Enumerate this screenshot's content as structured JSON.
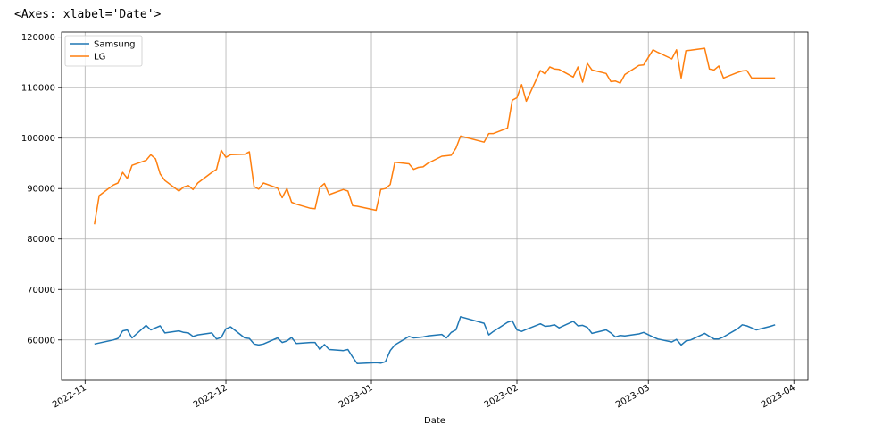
{
  "output_header": "<Axes: xlabel='Date'>",
  "chart_data": {
    "type": "line",
    "title": "",
    "xlabel": "Date",
    "ylabel": "",
    "xlim": [
      "2022-10-27",
      "2023-04-04"
    ],
    "ylim": [
      52000,
      121000
    ],
    "grid": true,
    "legend_position": "upper-left",
    "x_ticks": [
      "2022-11",
      "2022-12",
      "2023-01",
      "2023-02",
      "2023-03",
      "2023-04"
    ],
    "y_ticks": [
      "60000",
      "70000",
      "80000",
      "90000",
      "100000",
      "110000",
      "120000"
    ],
    "colors": {
      "Samsung": "#1f77b4",
      "LG": "#ff7f0e",
      "grid": "#b0b0b0",
      "axes": "#000000"
    },
    "series": [
      {
        "name": "Samsung",
        "x": [
          "2022-11-03",
          "2022-11-04",
          "2022-11-07",
          "2022-11-08",
          "2022-11-09",
          "2022-11-10",
          "2022-11-11",
          "2022-11-14",
          "2022-11-15",
          "2022-11-16",
          "2022-11-17",
          "2022-11-18",
          "2022-11-21",
          "2022-11-22",
          "2022-11-23",
          "2022-11-24",
          "2022-11-25",
          "2022-11-28",
          "2022-11-29",
          "2022-11-30",
          "2022-12-01",
          "2022-12-02",
          "2022-12-05",
          "2022-12-06",
          "2022-12-07",
          "2022-12-08",
          "2022-12-09",
          "2022-12-12",
          "2022-12-13",
          "2022-12-14",
          "2022-12-15",
          "2022-12-16",
          "2022-12-19",
          "2022-12-20",
          "2022-12-21",
          "2022-12-22",
          "2022-12-23",
          "2022-12-26",
          "2022-12-27",
          "2022-12-28",
          "2022-12-29",
          "2023-01-02",
          "2023-01-03",
          "2023-01-04",
          "2023-01-05",
          "2023-01-06",
          "2023-01-09",
          "2023-01-10",
          "2023-01-11",
          "2023-01-12",
          "2023-01-13",
          "2023-01-16",
          "2023-01-17",
          "2023-01-18",
          "2023-01-19",
          "2023-01-20",
          "2023-01-25",
          "2023-01-26",
          "2023-01-27",
          "2023-01-30",
          "2023-01-31",
          "2023-02-01",
          "2023-02-02",
          "2023-02-03",
          "2023-02-06",
          "2023-02-07",
          "2023-02-08",
          "2023-02-09",
          "2023-02-10",
          "2023-02-13",
          "2023-02-14",
          "2023-02-15",
          "2023-02-16",
          "2023-02-17",
          "2023-02-20",
          "2023-02-21",
          "2023-02-22",
          "2023-02-23",
          "2023-02-24",
          "2023-02-27",
          "2023-02-28",
          "2023-03-02",
          "2023-03-03",
          "2023-03-06",
          "2023-03-07",
          "2023-03-08",
          "2023-03-09",
          "2023-03-10",
          "2023-03-13",
          "2023-03-14",
          "2023-03-15",
          "2023-03-16",
          "2023-03-17",
          "2023-03-20",
          "2023-03-21",
          "2023-03-22",
          "2023-03-23",
          "2023-03-24",
          "2023-03-27",
          "2023-03-28"
        ],
        "values": [
          59200,
          59400,
          60000,
          60300,
          61800,
          62000,
          60400,
          62900,
          62000,
          62400,
          62800,
          61400,
          61800,
          61500,
          61400,
          60700,
          61000,
          61400,
          60200,
          60500,
          62200,
          62600,
          60400,
          60300,
          59200,
          59000,
          59200,
          60400,
          59500,
          59800,
          60500,
          59300,
          59500,
          59500,
          58100,
          59100,
          58100,
          57900,
          58100,
          56600,
          55300,
          55500,
          55400,
          55700,
          57900,
          59000,
          60700,
          60400,
          60500,
          60600,
          60800,
          61100,
          60400,
          61500,
          62000,
          64600,
          63300,
          61000,
          61700,
          63500,
          63800,
          62000,
          61700,
          62100,
          63200,
          62700,
          62800,
          63000,
          62400,
          63700,
          62800,
          62900,
          62500,
          61300,
          62000,
          61400,
          60600,
          60900,
          60800,
          61200,
          61500,
          60600,
          60200,
          59600,
          60100,
          59000,
          59800,
          60000,
          61300,
          60700,
          60200,
          60200,
          60600,
          62200,
          63000,
          62800,
          62400,
          62000,
          62700,
          63000
        ]
      },
      {
        "name": "LG",
        "x": [
          "2022-11-03",
          "2022-11-04",
          "2022-11-07",
          "2022-11-08",
          "2022-11-09",
          "2022-11-10",
          "2022-11-11",
          "2022-11-14",
          "2022-11-15",
          "2022-11-16",
          "2022-11-17",
          "2022-11-18",
          "2022-11-21",
          "2022-11-22",
          "2022-11-23",
          "2022-11-24",
          "2022-11-25",
          "2022-11-28",
          "2022-11-29",
          "2022-11-30",
          "2022-12-01",
          "2022-12-02",
          "2022-12-05",
          "2022-12-06",
          "2022-12-07",
          "2022-12-08",
          "2022-12-09",
          "2022-12-12",
          "2022-12-13",
          "2022-12-14",
          "2022-12-15",
          "2022-12-16",
          "2022-12-19",
          "2022-12-20",
          "2022-12-21",
          "2022-12-22",
          "2022-12-23",
          "2022-12-26",
          "2022-12-27",
          "2022-12-28",
          "2022-12-29",
          "2023-01-02",
          "2023-01-03",
          "2023-01-04",
          "2023-01-05",
          "2023-01-06",
          "2023-01-09",
          "2023-01-10",
          "2023-01-11",
          "2023-01-12",
          "2023-01-13",
          "2023-01-16",
          "2023-01-17",
          "2023-01-18",
          "2023-01-19",
          "2023-01-20",
          "2023-01-25",
          "2023-01-26",
          "2023-01-27",
          "2023-01-30",
          "2023-01-31",
          "2023-02-01",
          "2023-02-02",
          "2023-02-03",
          "2023-02-06",
          "2023-02-07",
          "2023-02-08",
          "2023-02-09",
          "2023-02-10",
          "2023-02-13",
          "2023-02-14",
          "2023-02-15",
          "2023-02-16",
          "2023-02-17",
          "2023-02-20",
          "2023-02-21",
          "2023-02-22",
          "2023-02-23",
          "2023-02-24",
          "2023-02-27",
          "2023-02-28",
          "2023-03-02",
          "2023-03-03",
          "2023-03-06",
          "2023-03-07",
          "2023-03-08",
          "2023-03-09",
          "2023-03-10",
          "2023-03-13",
          "2023-03-14",
          "2023-03-15",
          "2023-03-16",
          "2023-03-17",
          "2023-03-20",
          "2023-03-21",
          "2023-03-22",
          "2023-03-23",
          "2023-03-24",
          "2023-03-27",
          "2023-03-28"
        ],
        "values": [
          82900,
          88600,
          90700,
          91100,
          93200,
          92000,
          94600,
          95600,
          96700,
          95900,
          92900,
          91600,
          89500,
          90300,
          90600,
          89800,
          91100,
          93200,
          93800,
          97600,
          96200,
          96700,
          96800,
          97300,
          90400,
          89900,
          91100,
          90100,
          88200,
          90000,
          87300,
          86900,
          86100,
          86000,
          90200,
          91000,
          88800,
          89800,
          89500,
          86600,
          86500,
          85700,
          89800,
          90000,
          90800,
          95200,
          94900,
          93800,
          94200,
          94300,
          95000,
          96400,
          96500,
          96600,
          98000,
          100400,
          99200,
          100900,
          100900,
          102000,
          107500,
          108000,
          110600,
          107300,
          113400,
          112700,
          114100,
          113700,
          113600,
          112100,
          114100,
          111100,
          114800,
          113500,
          112800,
          111200,
          111300,
          110900,
          112600,
          114400,
          114500,
          117500,
          117000,
          115700,
          117500,
          111900,
          117300,
          117400,
          117800,
          113700,
          113500,
          114300,
          111900,
          113000,
          113300,
          113400,
          111900,
          111900,
          111900,
          111900
        ]
      }
    ]
  }
}
